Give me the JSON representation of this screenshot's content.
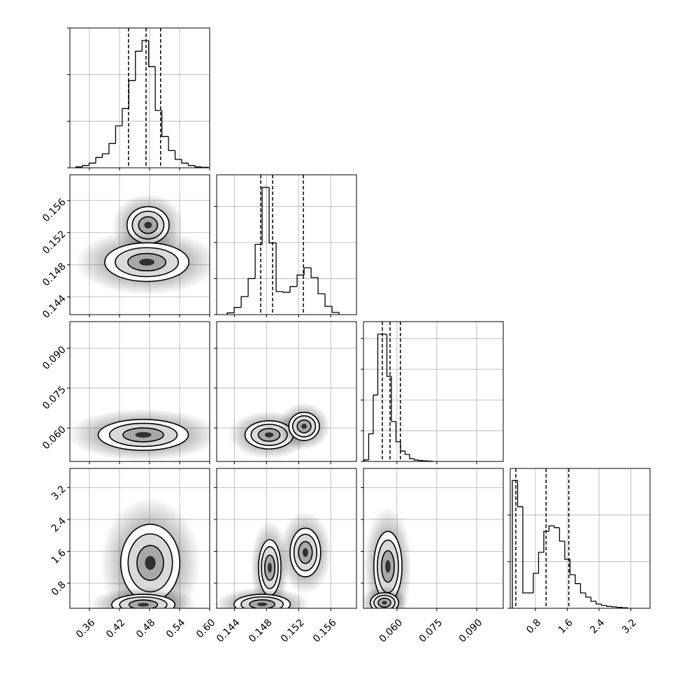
{
  "chart_data": {
    "type": "corner",
    "grid": true,
    "line_color": "#000000",
    "fill_color": "#000000",
    "params": [
      {
        "xlim": [
          0.321,
          0.6
        ],
        "xticks": [
          0.36,
          0.42,
          0.48,
          0.54,
          {
            "value": 0.6,
            "label": "0.60"
          }
        ],
        "bins": [
          0.333,
          0.3462,
          0.3594,
          0.3726,
          0.3858,
          0.399,
          0.4122,
          0.4254,
          0.4386,
          0.4518,
          0.465,
          0.4782,
          0.4914,
          0.5046,
          0.5178,
          0.531,
          0.5442,
          0.5574,
          0.5706,
          0.5838,
          0.597
        ],
        "values": [
          0.02,
          0.05,
          0.1,
          0.22,
          0.3,
          0.52,
          0.9,
          1.27,
          1.87,
          2.5,
          2.73,
          2.17,
          1.23,
          0.67,
          0.37,
          0.18,
          0.1,
          0.05,
          0.02,
          0.01
        ],
        "hist_ylim": [
          0,
          3
        ],
        "hist_yticks": [
          0,
          1,
          2,
          3
        ],
        "quantiles": [
          0.438,
          0.473,
          0.502
        ]
      },
      {
        "xlim": [
          0.1418,
          0.1592
        ],
        "xticks": [
          0.144,
          0.148,
          0.152,
          0.156
        ],
        "bins": [
          0.14311,
          0.14398,
          0.14485,
          0.14572,
          0.14659,
          0.14746,
          0.14833,
          0.1492,
          0.15007,
          0.15094,
          0.15181,
          0.15268,
          0.15355,
          0.15442,
          0.15529,
          0.15616,
          0.15703
        ],
        "values": [
          0.05,
          0.2,
          0.5,
          1.0,
          1.95,
          3.53,
          1.99,
          0.64,
          0.62,
          0.78,
          1.1,
          1.3,
          1.03,
          0.58,
          0.23,
          0.06
        ],
        "hist_ylim": [
          0,
          3.88
        ],
        "hist_yticks": [
          0,
          1,
          2,
          3
        ],
        "quantiles": [
          0.14728,
          0.14876,
          0.15259
        ]
      },
      {
        "xlim": [
          0.0474,
          0.1
        ],
        "xticks": [
          {
            "value": 0.06,
            "label": "0.060"
          },
          0.075,
          {
            "value": 0.09,
            "label": "0.090"
          }
        ],
        "bins": [
          0.04766,
          0.04937,
          0.05108,
          0.05279,
          0.0545,
          0.05621,
          0.05792,
          0.05963,
          0.06134,
          0.06305,
          0.06476,
          0.06647,
          0.06818,
          0.06989,
          0.0716,
          0.07331
        ],
        "values": [
          0.05,
          0.9,
          2.16,
          4.14,
          4.14,
          2.77,
          1.3,
          0.64,
          0.34,
          0.23,
          0.09,
          0.05,
          0.03,
          0.02,
          0.01
        ],
        "hist_ylim": [
          0,
          4.55
        ],
        "hist_yticks": [
          0,
          1,
          2,
          3,
          4
        ],
        "quantiles": [
          0.0545,
          0.0574,
          0.0613
        ]
      },
      {
        "xlim": [
          0.17,
          3.68
        ],
        "xticks": [
          0.8,
          1.6,
          2.4,
          3.2
        ],
        "bins": [
          0.2227,
          0.3543,
          0.4859,
          0.6175,
          0.7491,
          0.8807,
          1.0123,
          1.1439,
          1.2755,
          1.4071,
          1.5387,
          1.6703,
          1.8019,
          1.9335,
          2.0651,
          2.1967,
          2.3283,
          2.4599,
          2.5915,
          2.7231,
          2.8547,
          2.9863,
          3.1179
        ],
        "values": [
          2.74,
          2.18,
          0.33,
          0.33,
          0.75,
          1.2,
          1.65,
          1.77,
          1.73,
          1.44,
          1.05,
          0.72,
          0.53,
          0.33,
          0.24,
          0.15,
          0.09,
          0.06,
          0.04,
          0.03,
          0.02,
          0.01
        ],
        "hist_ylim": [
          0,
          3
        ],
        "hist_yticks": [
          0,
          1,
          2
        ],
        "quantiles": [
          0.31,
          1.07,
          1.64
        ]
      }
    ],
    "pairs": [
      {
        "blobs": [
          [
            0.477,
            0.15294,
            0.042,
            0.0023
          ],
          [
            0.4745,
            0.14833,
            0.084,
            0.0024
          ]
        ]
      },
      {
        "blobs": [
          [
            0.4675,
            0.0574,
            0.09,
            0.0058
          ]
        ]
      },
      {
        "blobs": [
          [
            0.14833,
            0.0574,
            0.003,
            0.0053
          ],
          [
            0.15268,
            0.0606,
            0.0019,
            0.0053
          ]
        ]
      },
      {
        "blobs": [
          [
            0.4814,
            1.31,
            0.059,
            0.97
          ],
          [
            0.4675,
            0.26,
            0.063,
            0.26
          ]
        ]
      },
      {
        "blobs": [
          [
            0.14841,
            1.19,
            0.0014,
            0.7
          ],
          [
            0.15284,
            1.57,
            0.0019,
            0.61
          ],
          [
            0.14746,
            0.27,
            0.0035,
            0.25
          ]
        ]
      },
      {
        "blobs": [
          [
            0.0566,
            1.22,
            0.0053,
            0.88
          ],
          [
            0.0553,
            0.31,
            0.0053,
            0.25
          ]
        ]
      }
    ]
  }
}
